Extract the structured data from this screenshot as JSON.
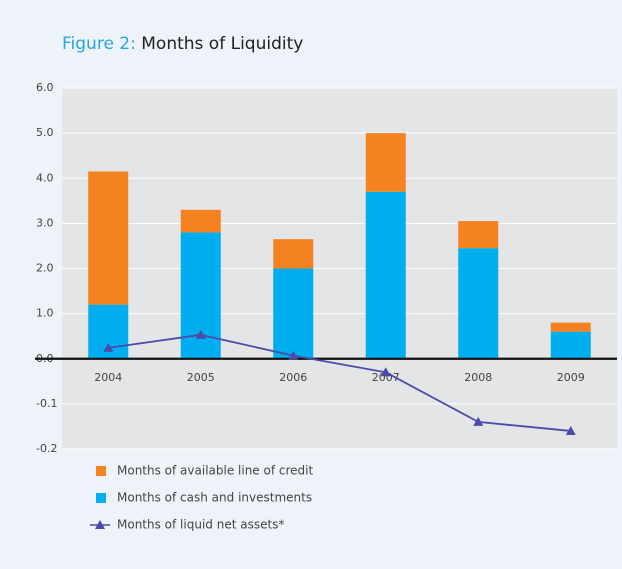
{
  "chart_data": {
    "type": "bar",
    "title_prefix": "Figure 2:",
    "title": "Months of Liquidity",
    "categories": [
      "2004",
      "2005",
      "2006",
      "2007",
      "2008",
      "2009"
    ],
    "series": [
      {
        "name": "Months of available line of credit",
        "color": "#f58220",
        "type": "bar",
        "values": [
          2.95,
          0.5,
          0.65,
          1.3,
          0.6,
          0.2
        ]
      },
      {
        "name": "Months of cash and investments",
        "color": "#00aeef",
        "type": "bar",
        "values": [
          1.2,
          2.8,
          2.0,
          3.7,
          2.45,
          0.6
        ]
      },
      {
        "name": "Months of liquid net assets*",
        "color": "#4b4ba8",
        "type": "line",
        "values": [
          0.24,
          0.53,
          0.07,
          -0.03,
          -0.14,
          -0.16
        ]
      }
    ],
    "stack_order": [
      1,
      0
    ],
    "ylim": [
      -0.2,
      6
    ],
    "yticks": [
      {
        "value": 6,
        "label": "6.0"
      },
      {
        "value": 5,
        "label": "5.0"
      },
      {
        "value": 4,
        "label": "4.0"
      },
      {
        "value": 3,
        "label": "3.0"
      },
      {
        "value": 2,
        "label": "2.0"
      },
      {
        "value": 1,
        "label": "1.0"
      },
      {
        "value": 0,
        "label": "0.0"
      },
      -0.1,
      -0.2
    ],
    "grid": true
  }
}
